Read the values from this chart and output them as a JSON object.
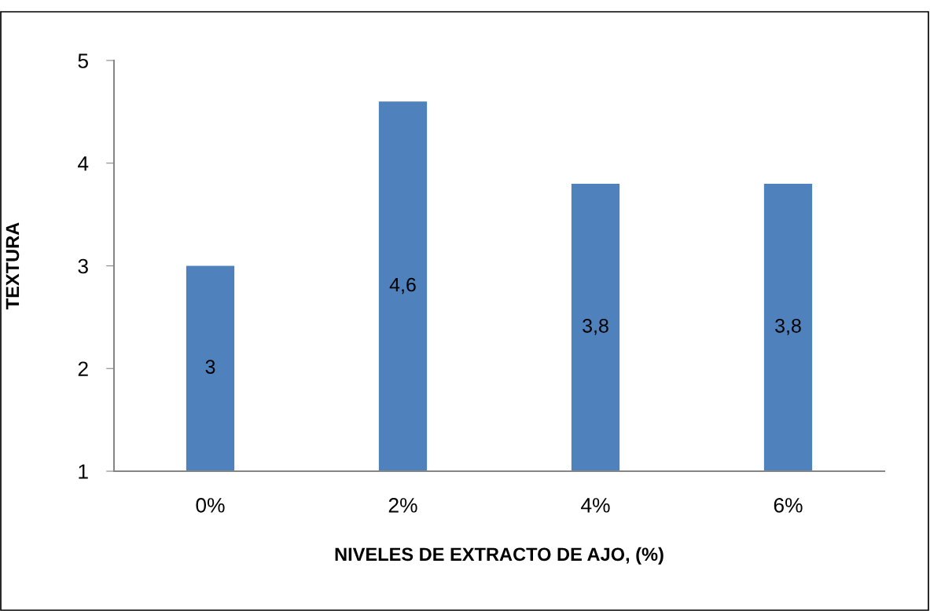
{
  "chart_data": {
    "type": "bar",
    "xlabel": "NIVELES DE EXTRACTO DE AJO, (%)",
    "ylabel": "TEXTURA",
    "categories": [
      "0%",
      "2%",
      "4%",
      "6%"
    ],
    "values": [
      3,
      4.6,
      3.8,
      3.8
    ],
    "value_labels": [
      "3",
      "4,6",
      "3,8",
      "3,8"
    ],
    "color": "#4f81bd",
    "ylim": [
      1,
      5
    ],
    "yticks": [
      1,
      2,
      3,
      4,
      5
    ],
    "grid": false,
    "legend": false
  }
}
